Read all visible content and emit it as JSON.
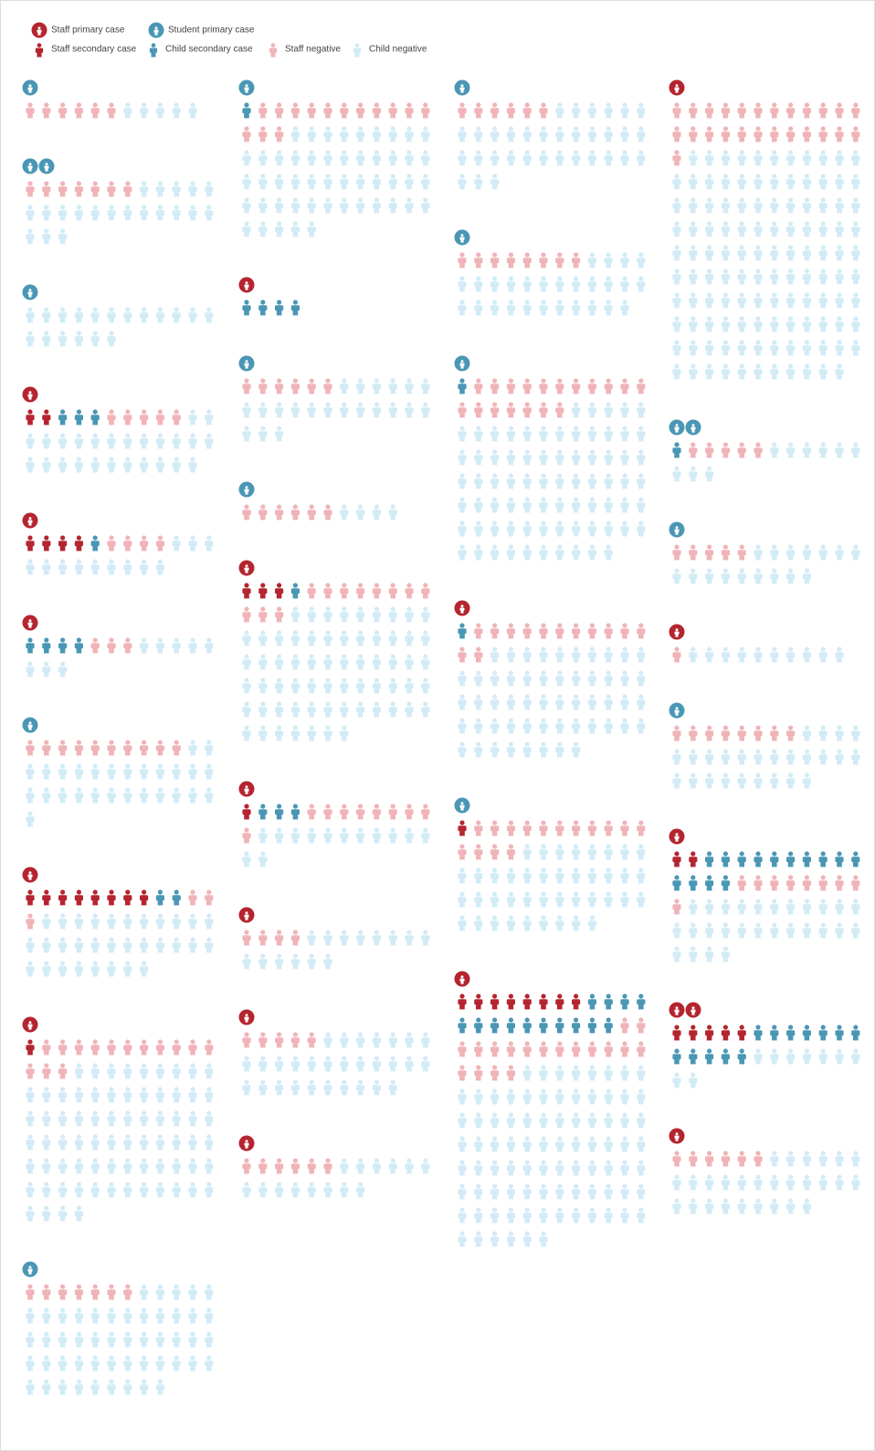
{
  "chart_data": {
    "type": "pictogram",
    "series": [
      {
        "name": "Staff primary case",
        "color": "#b5252f"
      },
      {
        "name": "Student primary case",
        "color": "#4a97b5"
      },
      {
        "name": "Staff secondary case",
        "color": "#b5252f"
      },
      {
        "name": "Child secondary case",
        "color": "#4a97b5"
      },
      {
        "name": "Staff negative",
        "color": "#f0b4b8"
      },
      {
        "name": "Child negative",
        "color": "#d3ebf6"
      }
    ],
    "columns": [
      [
        [
          0,
          1,
          0,
          0,
          6,
          5
        ],
        [
          0,
          2,
          0,
          0,
          7,
          20
        ],
        [
          0,
          1,
          0,
          0,
          0,
          18
        ],
        [
          1,
          0,
          2,
          3,
          5,
          25
        ],
        [
          1,
          0,
          4,
          1,
          4,
          12
        ],
        [
          1,
          0,
          0,
          4,
          3,
          8
        ],
        [
          0,
          1,
          0,
          0,
          10,
          27
        ],
        [
          1,
          0,
          8,
          2,
          3,
          31
        ],
        [
          1,
          0,
          1,
          0,
          14,
          73
        ],
        [
          0,
          1,
          0,
          0,
          7,
          50
        ]
      ],
      [
        [
          0,
          1,
          0,
          1,
          14,
          50
        ],
        [
          1,
          0,
          0,
          4,
          0,
          0
        ],
        [
          0,
          1,
          0,
          0,
          6,
          21
        ],
        [
          0,
          1,
          0,
          0,
          6,
          4
        ],
        [
          1,
          0,
          3,
          1,
          11,
          64
        ],
        [
          1,
          0,
          1,
          3,
          9,
          13
        ],
        [
          1,
          0,
          0,
          0,
          4,
          14
        ],
        [
          1,
          0,
          0,
          0,
          5,
          29
        ],
        [
          1,
          0,
          0,
          0,
          6,
          14
        ]
      ],
      [
        [
          0,
          1,
          0,
          0,
          6,
          33
        ],
        [
          0,
          1,
          0,
          0,
          8,
          27
        ],
        [
          0,
          1,
          0,
          1,
          18,
          75
        ],
        [
          1,
          0,
          0,
          1,
          13,
          54
        ],
        [
          0,
          1,
          1,
          0,
          15,
          41
        ],
        [
          1,
          0,
          8,
          14,
          18,
          86
        ]
      ],
      [
        [
          1,
          0,
          0,
          0,
          25,
          118
        ],
        [
          0,
          2,
          0,
          1,
          5,
          9
        ],
        [
          0,
          1,
          0,
          0,
          5,
          16
        ],
        [
          1,
          0,
          0,
          0,
          1,
          10
        ],
        [
          0,
          1,
          0,
          0,
          8,
          25
        ],
        [
          1,
          0,
          2,
          14,
          9,
          27
        ],
        [
          2,
          0,
          5,
          12,
          0,
          9
        ],
        [
          1,
          0,
          0,
          0,
          6,
          27
        ]
      ]
    ]
  }
}
